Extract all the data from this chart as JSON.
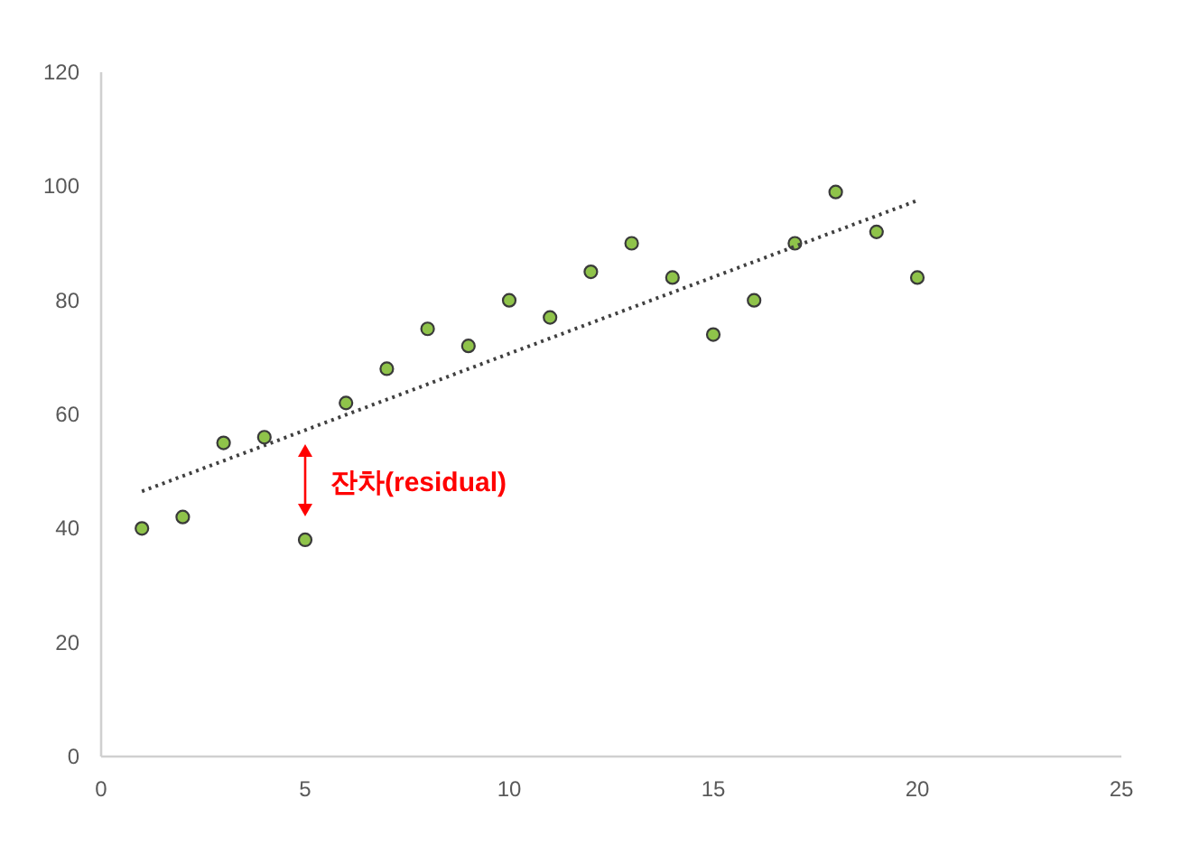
{
  "chart_data": {
    "type": "scatter",
    "x": [
      1,
      2,
      3,
      4,
      5,
      6,
      7,
      8,
      9,
      10,
      11,
      12,
      13,
      14,
      15,
      16,
      17,
      18,
      19,
      20
    ],
    "marker": "circle",
    "grid": false,
    "series": [
      {
        "color": "#8fc34a",
        "values": [
          40,
          42,
          55,
          56,
          38,
          62,
          68,
          75,
          72,
          80,
          77,
          85,
          90,
          84,
          74,
          80,
          90,
          99,
          92,
          84
        ]
      },
      {
        "type": "line",
        "marker": "none",
        "line_style": "dotted",
        "color": "#404040",
        "x": [
          1,
          20
        ],
        "values": [
          46.5,
          97.5
        ]
      }
    ],
    "xlim": [
      0,
      25
    ],
    "xticks": [
      0,
      5,
      10,
      15,
      20,
      25
    ],
    "ylim": [
      0,
      120
    ],
    "yticks": [
      0,
      20,
      40,
      60,
      80,
      100,
      120
    ],
    "annotations": [
      "잔차(residual)"
    ]
  }
}
